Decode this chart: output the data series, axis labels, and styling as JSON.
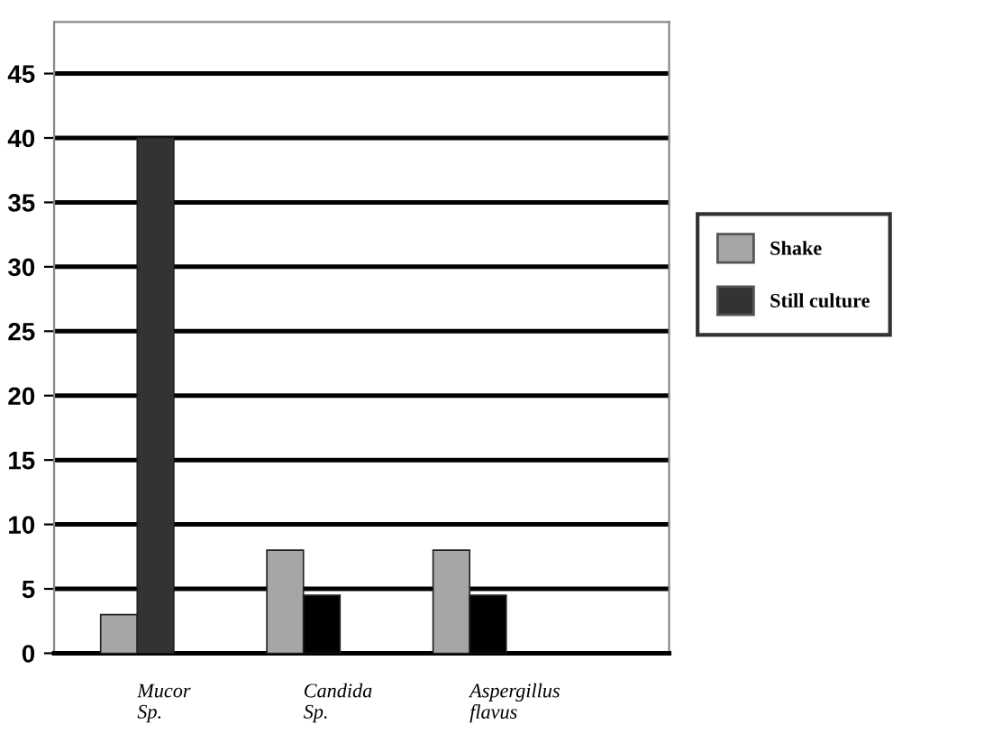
{
  "chart_data": {
    "type": "bar",
    "categories": [
      "Mucor Sp.",
      "Candida Sp.",
      "Aspergillus flavus"
    ],
    "series": [
      {
        "name": "Shake",
        "color": "#a6a6a6",
        "values": [
          3,
          8,
          8
        ]
      },
      {
        "name": "Still culture",
        "color": "#333333",
        "colors": [
          "#333333",
          "#000000",
          "#000000"
        ],
        "values": [
          40,
          4.5,
          4.5
        ]
      }
    ],
    "ylim": [
      0,
      49
    ],
    "yticks": [
      0,
      5,
      10,
      15,
      20,
      25,
      30,
      35,
      40,
      45
    ],
    "grid": "y",
    "legend": "right"
  }
}
